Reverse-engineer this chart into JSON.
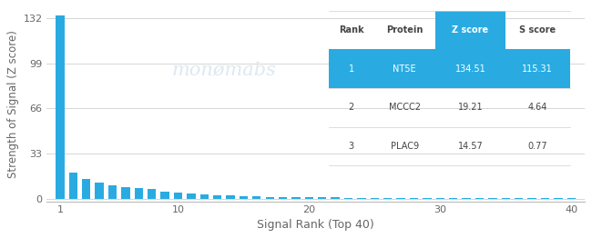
{
  "bar_color": "#29ABE2",
  "background_color": "#ffffff",
  "ylabel": "Strength of Signal (Z score)",
  "xlabel": "Signal Rank (Top 40)",
  "yticks": [
    0,
    33,
    66,
    99,
    132
  ],
  "xticks": [
    1,
    10,
    20,
    30,
    40
  ],
  "xlim": [
    0,
    41
  ],
  "ylim": [
    -2,
    140
  ],
  "bar_values": [
    134.51,
    19.21,
    14.57,
    11.5,
    9.8,
    8.5,
    7.6,
    6.8,
    5.2,
    4.1,
    3.5,
    3.0,
    2.6,
    2.2,
    1.9,
    1.6,
    1.4,
    1.2,
    1.05,
    0.95,
    0.85,
    0.78,
    0.72,
    0.67,
    0.62,
    0.58,
    0.54,
    0.5,
    0.47,
    0.44,
    0.41,
    0.38,
    0.35,
    0.33,
    0.31,
    0.29,
    0.27,
    0.25,
    0.23,
    0.21
  ],
  "grid_color": "#d0d0d0",
  "table_blue": "#29ABE2",
  "table_white": "#ffffff",
  "table_dark_text": "#444444",
  "table_data": [
    [
      "Rank",
      "Protein",
      "Z score",
      "S score"
    ],
    [
      "1",
      "NT5E",
      "134.51",
      "115.31"
    ],
    [
      "2",
      "MCCC2",
      "19.21",
      "4.64"
    ],
    [
      "3",
      "PLAC9",
      "14.57",
      "0.77"
    ]
  ],
  "watermark_text": "monømabs",
  "watermark_color": "#dde8f0",
  "axis_color": "#bbbbbb",
  "tick_color": "#666666",
  "tick_fontsize": 8,
  "label_fontsize": 9
}
